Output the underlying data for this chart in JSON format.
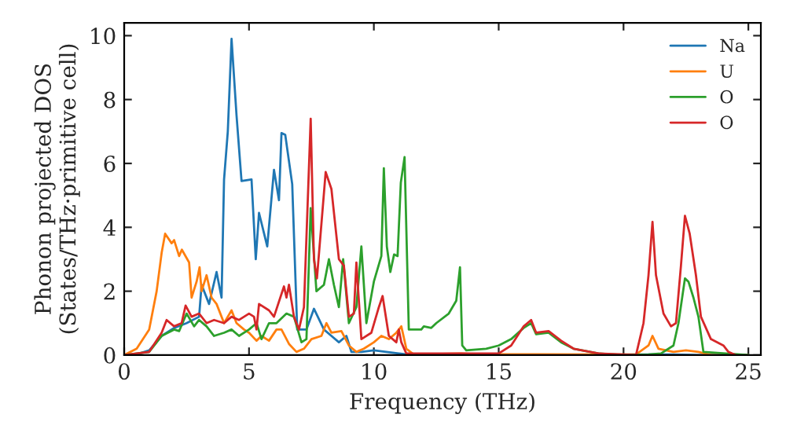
{
  "chart_data": {
    "type": "line",
    "xlabel": "Frequency (THz)",
    "ylabel": "Phonon projected DOS\n(States/THz·primitive cell)",
    "xlim": [
      0,
      25.5
    ],
    "ylim": [
      0,
      10.4
    ],
    "xticks": [
      0,
      5,
      10,
      15,
      20,
      25
    ],
    "yticks": [
      0,
      2,
      4,
      6,
      8,
      10
    ],
    "grid": false,
    "legend": "top right",
    "marker": "none",
    "line_style": "solid",
    "series": [
      {
        "name": "Na",
        "color": "#1f77b4",
        "x": [
          0,
          0.5,
          1,
          1.5,
          2,
          2.5,
          3,
          3.1,
          3.4,
          3.7,
          3.9,
          4.0,
          4.15,
          4.3,
          4.5,
          4.7,
          5.1,
          5.27,
          5.4,
          5.73,
          6.0,
          6.2,
          6.3,
          6.45,
          6.73,
          6.93,
          7.3,
          7.6,
          8.0,
          8.3,
          8.6,
          8.9,
          9.1,
          9.5,
          10,
          10.5,
          11,
          11.5,
          21,
          22,
          23,
          25
        ],
        "values": [
          0,
          0.02,
          0.15,
          0.6,
          0.85,
          1.0,
          1.2,
          2.2,
          1.6,
          2.6,
          1.8,
          5.5,
          7.0,
          9.9,
          7.5,
          5.45,
          5.5,
          3.0,
          4.45,
          3.4,
          5.8,
          4.85,
          6.95,
          6.9,
          5.35,
          0.8,
          0.8,
          1.45,
          0.8,
          0.6,
          0.4,
          0.6,
          0.1,
          0.1,
          0.15,
          0.1,
          0.05,
          0,
          0.02,
          0.02,
          0,
          0
        ]
      },
      {
        "name": "U",
        "color": "#ff7f0e",
        "x": [
          0,
          0.5,
          1,
          1.3,
          1.5,
          1.64,
          1.9,
          2.0,
          2.2,
          2.31,
          2.6,
          2.7,
          2.9,
          3.02,
          3.1,
          3.3,
          3.5,
          3.7,
          4.0,
          4.3,
          4.5,
          4.8,
          5.0,
          5.3,
          5.5,
          5.8,
          6.1,
          6.3,
          6.6,
          6.9,
          7.2,
          7.5,
          7.9,
          8.1,
          8.3,
          8.7,
          9.0,
          9.3,
          9.6,
          10.0,
          10.3,
          10.6,
          10.9,
          11.1,
          11.3,
          11.6,
          13.5,
          14,
          20.5,
          21.0,
          21.16,
          21.4,
          22,
          22.5,
          23,
          23.5,
          25
        ],
        "values": [
          0,
          0.2,
          0.8,
          2.0,
          3.2,
          3.8,
          3.5,
          3.6,
          3.1,
          3.3,
          2.9,
          1.8,
          2.3,
          2.75,
          2.0,
          2.5,
          1.8,
          1.6,
          1.0,
          1.4,
          1.0,
          0.8,
          0.7,
          0.45,
          0.6,
          0.45,
          0.8,
          0.8,
          0.35,
          0.1,
          0.2,
          0.5,
          0.6,
          1.0,
          0.7,
          0.75,
          0.3,
          0.1,
          0.2,
          0.4,
          0.6,
          0.5,
          0.7,
          0.9,
          0.2,
          0.02,
          0.05,
          0.03,
          0.02,
          0.3,
          0.6,
          0.2,
          0.1,
          0.15,
          0.1,
          0,
          0
        ]
      },
      {
        "name": "O",
        "color": "#2ca02c",
        "x": [
          0,
          1,
          1.5,
          2,
          2.2,
          2.5,
          2.8,
          3,
          3.3,
          3.6,
          4,
          4.3,
          4.6,
          5,
          5.3,
          5.5,
          5.8,
          6.1,
          6.5,
          6.8,
          7.1,
          7.3,
          7.47,
          7.7,
          8.0,
          8.2,
          8.4,
          8.6,
          8.77,
          9.0,
          9.3,
          9.5,
          9.7,
          10.0,
          10.3,
          10.4,
          10.52,
          10.66,
          10.81,
          10.95,
          11.08,
          11.23,
          11.4,
          11.9,
          12.0,
          12.3,
          12.5,
          13.0,
          13.3,
          13.45,
          13.54,
          13.7,
          14.5,
          15,
          15.5,
          16,
          16.3,
          16.5,
          17,
          17.5,
          18,
          19,
          20,
          21,
          21.5,
          22,
          22.2,
          22.46,
          22.6,
          22.8,
          23,
          23.2,
          25
        ],
        "values": [
          0,
          0.1,
          0.6,
          0.8,
          0.75,
          1.3,
          0.9,
          1.1,
          0.9,
          0.6,
          0.7,
          0.8,
          0.6,
          0.8,
          1.0,
          0.5,
          1.0,
          1.0,
          1.3,
          1.2,
          0.4,
          0.5,
          4.6,
          2.0,
          2.2,
          3.0,
          2.2,
          1.5,
          3.0,
          1.0,
          1.5,
          3.4,
          1.0,
          2.3,
          3.1,
          5.85,
          3.4,
          2.6,
          3.15,
          3.1,
          5.4,
          6.2,
          0.8,
          0.8,
          0.9,
          0.85,
          1.0,
          1.3,
          1.7,
          2.75,
          0.3,
          0.15,
          0.2,
          0.3,
          0.5,
          0.85,
          1.0,
          0.65,
          0.7,
          0.4,
          0.2,
          0.05,
          0,
          0.02,
          0.05,
          0.3,
          1.0,
          2.4,
          2.3,
          1.8,
          1.2,
          0.1,
          0
        ]
      },
      {
        "name": "O",
        "color": "#d62728",
        "x": [
          0,
          1,
          1.5,
          1.7,
          2.0,
          2.3,
          2.46,
          2.7,
          3.0,
          3.3,
          3.6,
          4.0,
          4.3,
          4.6,
          5.0,
          5.2,
          5.3,
          5.4,
          5.8,
          6.0,
          6.4,
          6.5,
          6.6,
          6.8,
          7.0,
          7.2,
          7.47,
          7.6,
          7.72,
          8.07,
          8.3,
          8.6,
          8.8,
          9.0,
          9.2,
          9.3,
          9.5,
          9.9,
          10.2,
          10.35,
          10.6,
          10.9,
          11.0,
          11.1,
          11.3,
          13,
          15,
          15.5,
          16.0,
          16.3,
          16.5,
          17,
          17.5,
          18,
          19,
          20.5,
          20.8,
          21.0,
          21.16,
          21.3,
          21.6,
          21.9,
          22.1,
          22.3,
          22.46,
          22.65,
          22.9,
          23.1,
          23.5,
          24,
          24.2,
          24.5
        ],
        "values": [
          0,
          0.1,
          0.7,
          1.1,
          0.9,
          1.0,
          1.55,
          1.2,
          1.3,
          1.0,
          1.1,
          1.0,
          1.2,
          1.1,
          1.3,
          1.2,
          0.8,
          1.6,
          1.4,
          1.2,
          2.15,
          1.8,
          2.2,
          1.2,
          0.8,
          1.5,
          7.4,
          3.0,
          2.4,
          5.73,
          5.2,
          3.0,
          2.8,
          1.2,
          1.3,
          2.9,
          0.5,
          0.7,
          1.5,
          1.85,
          0.6,
          0.4,
          0.8,
          0.4,
          0.05,
          0.05,
          0.05,
          0.3,
          0.9,
          1.1,
          0.7,
          0.75,
          0.45,
          0.2,
          0.05,
          0,
          1.0,
          2.5,
          4.17,
          2.5,
          1.3,
          0.9,
          1.0,
          2.8,
          4.36,
          3.8,
          2.5,
          1.2,
          0.5,
          0.3,
          0.1,
          0
        ]
      }
    ]
  }
}
